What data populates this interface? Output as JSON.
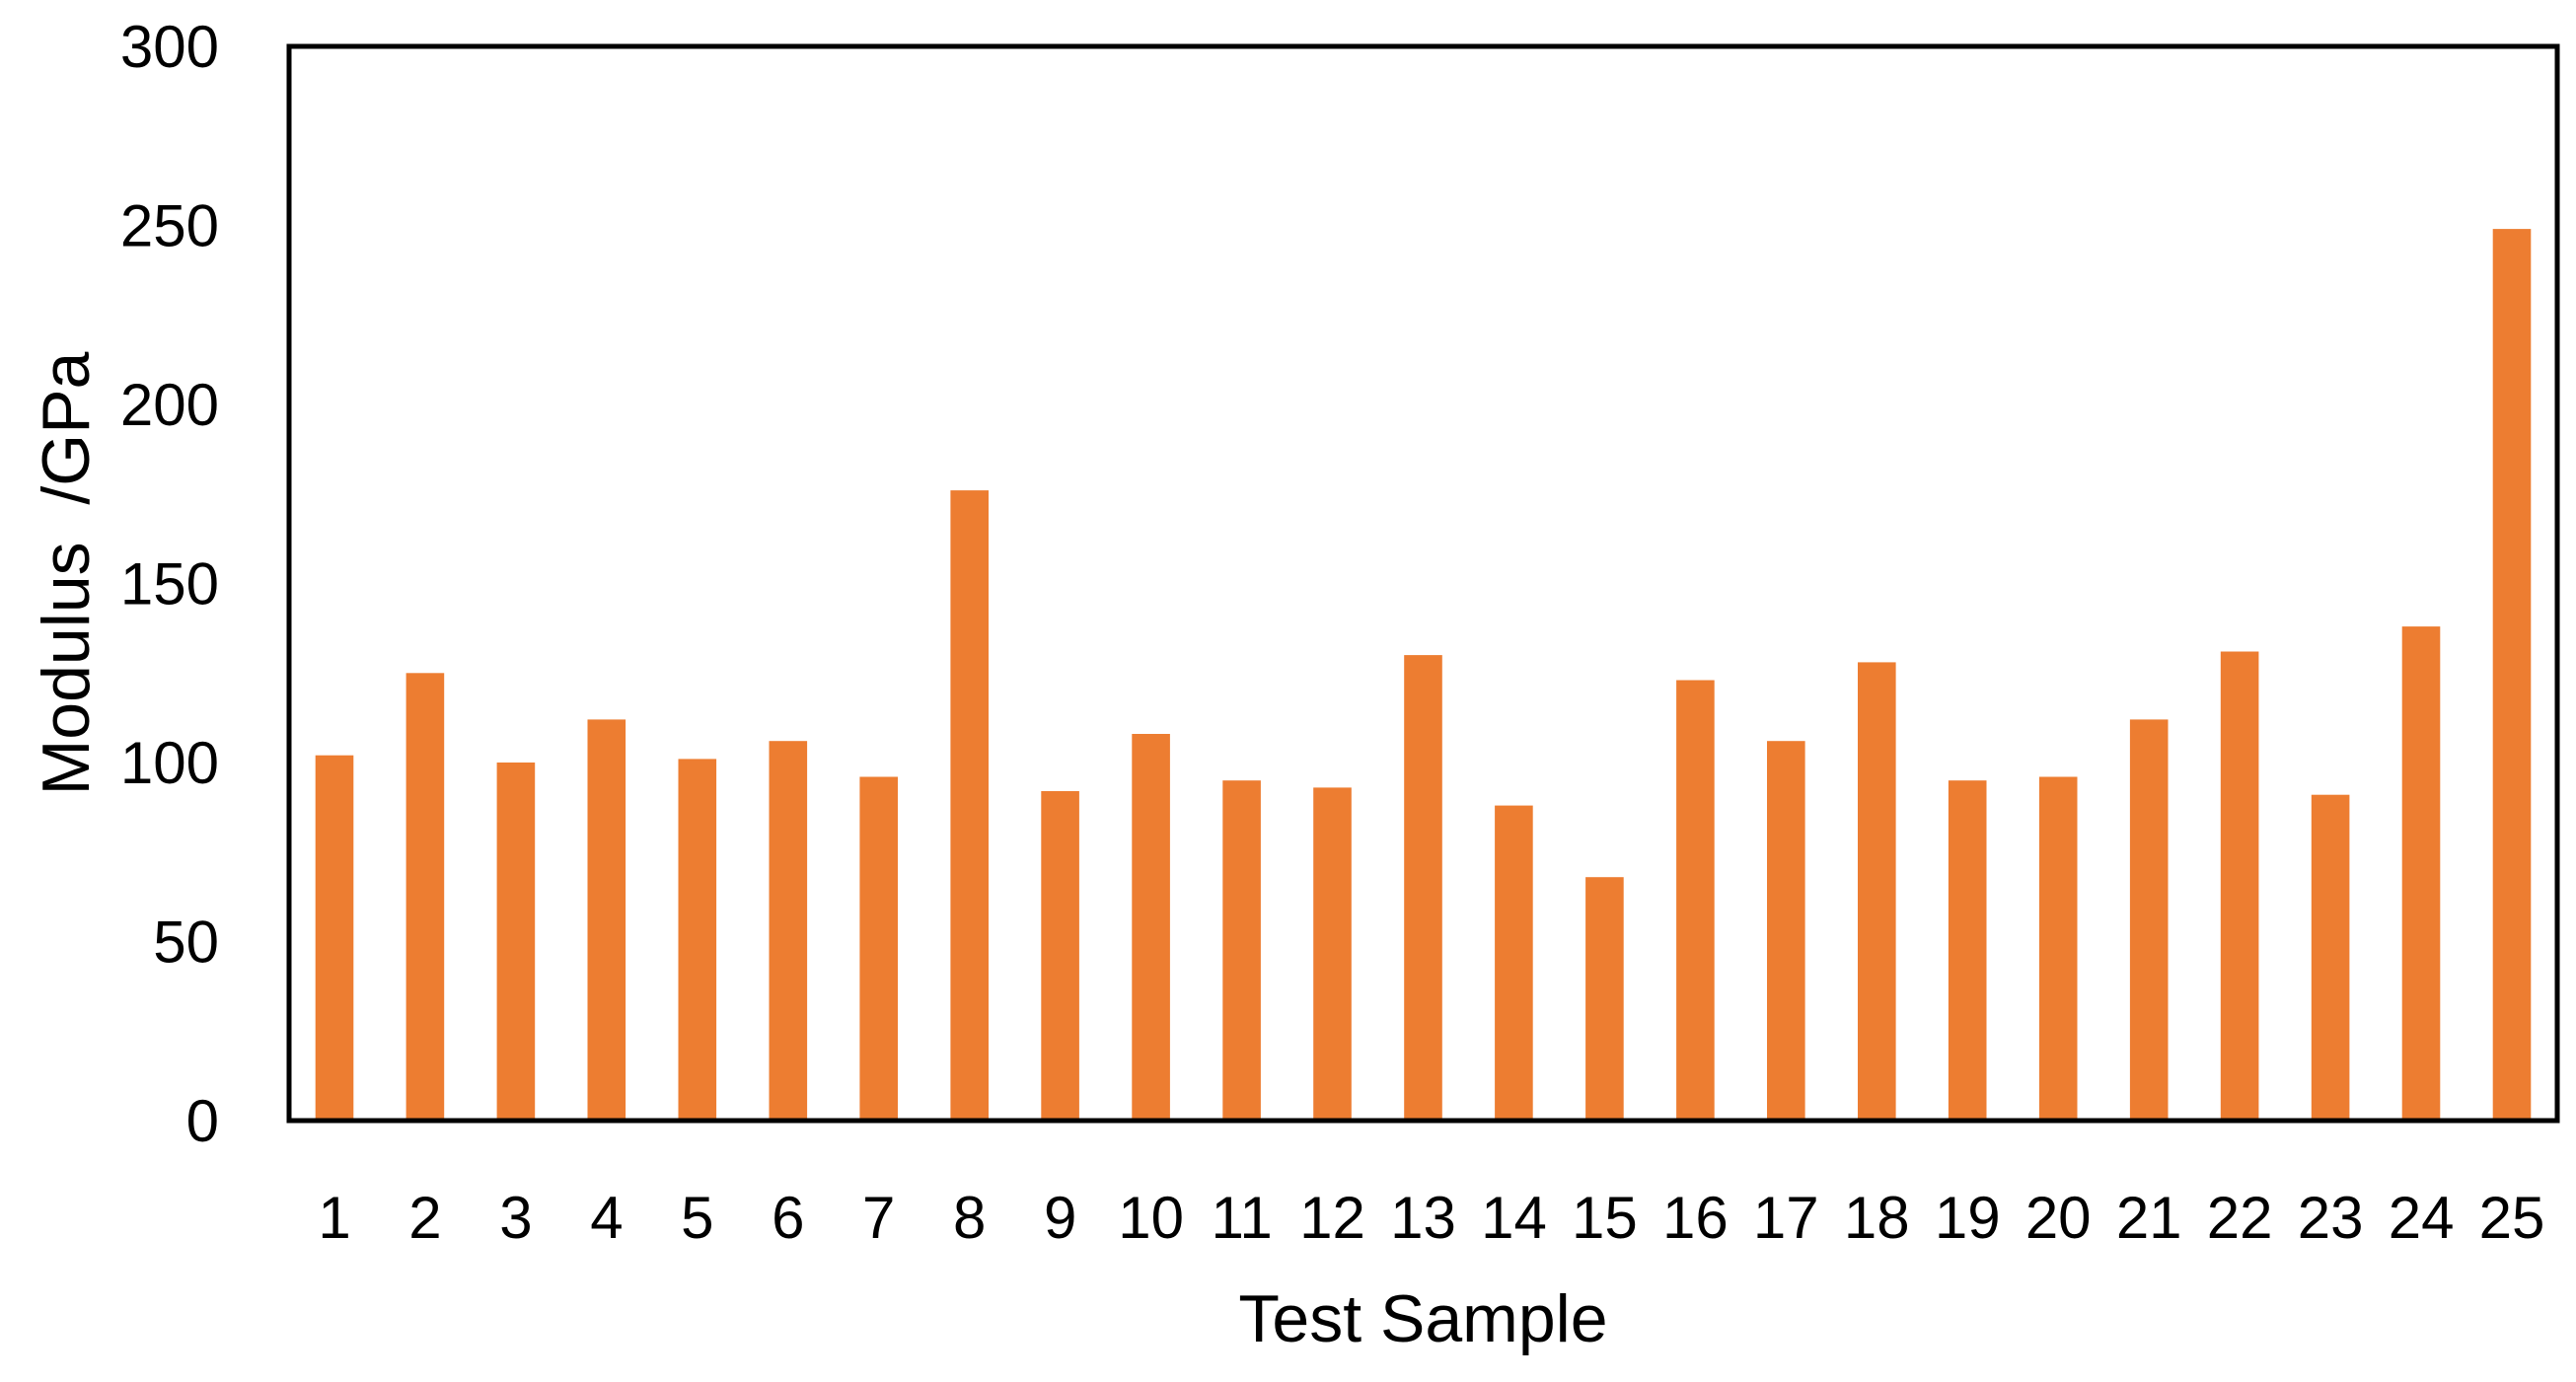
{
  "chart_data": {
    "type": "bar",
    "title": "",
    "xlabel": "Test Sample",
    "ylabel": "Modulus  /GPa",
    "ylim": [
      0,
      300
    ],
    "yticks": [
      0,
      50,
      100,
      150,
      200,
      250,
      300
    ],
    "categories": [
      "1",
      "2",
      "3",
      "4",
      "5",
      "6",
      "7",
      "8",
      "9",
      "10",
      "11",
      "12",
      "13",
      "14",
      "15",
      "16",
      "17",
      "18",
      "19",
      "20",
      "21",
      "22",
      "23",
      "24",
      "25"
    ],
    "values": [
      102,
      125,
      100,
      112,
      101,
      106,
      96,
      176,
      92,
      108,
      95,
      93,
      130,
      88,
      68,
      123,
      106,
      128,
      95,
      96,
      112,
      131,
      91,
      138,
      249
    ],
    "grid": false,
    "legend": "none",
    "bar_color": "#ED7D31",
    "frame_color": "#000000"
  }
}
